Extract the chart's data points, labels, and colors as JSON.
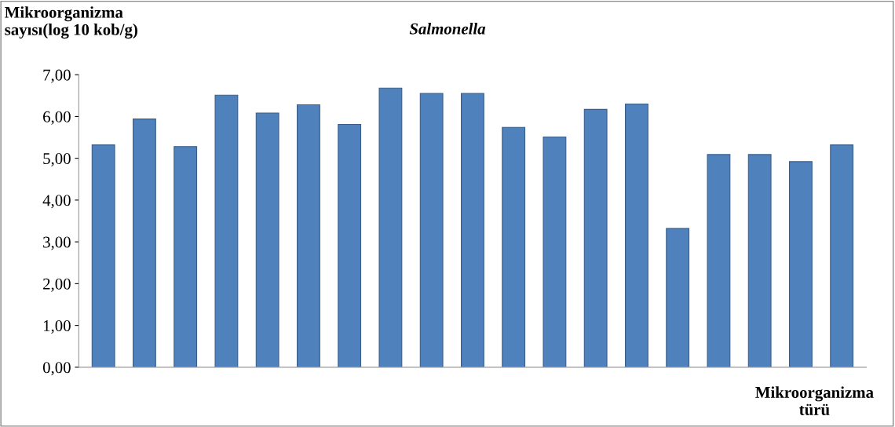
{
  "chart_data": {
    "type": "bar",
    "title": "Salmonella",
    "ylabel": "Mikroorganizma\nsayısı(log 10 kob/g)",
    "xlabel": "Mikroorganizma\ntürü",
    "categories": [
      null,
      null,
      null,
      null,
      null,
      null,
      null,
      null,
      null,
      null,
      null,
      null,
      null,
      null,
      null,
      null,
      null,
      null,
      null
    ],
    "values": [
      5.32,
      5.94,
      5.28,
      6.51,
      6.08,
      6.28,
      5.81,
      6.68,
      6.55,
      6.55,
      5.74,
      5.51,
      6.17,
      6.3,
      3.32,
      5.09,
      5.09,
      4.92,
      5.32
    ],
    "color": "#4f81bd",
    "ylim": [
      0,
      7
    ],
    "yticks": [
      {
        "value": 0,
        "label": "0,00"
      },
      {
        "value": 1,
        "label": "1,00"
      },
      {
        "value": 2,
        "label": "2,00"
      },
      {
        "value": 3,
        "label": "3,00"
      },
      {
        "value": 4,
        "label": "4,00"
      },
      {
        "value": 5,
        "label": "5,00"
      },
      {
        "value": 6,
        "label": "6,00"
      },
      {
        "value": 7,
        "label": "7,00"
      }
    ],
    "grid": false,
    "legend": false
  }
}
